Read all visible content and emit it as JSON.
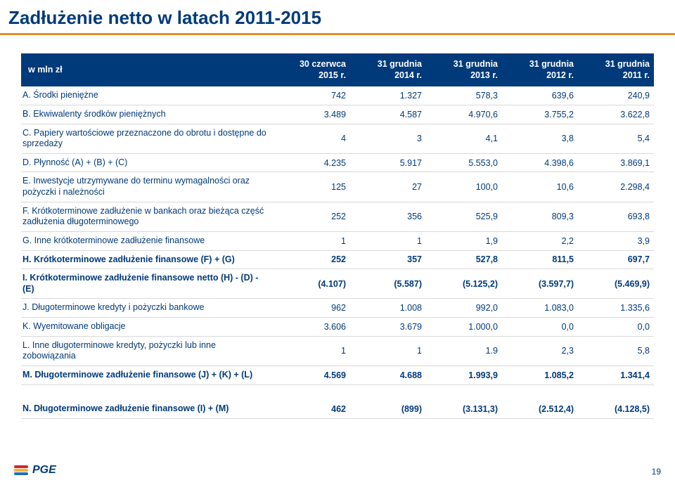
{
  "title": "Zadłużenie netto w latach 2011-2015",
  "columns": {
    "label": "w mln zł",
    "c1a": "30 czerwca",
    "c1b": "2015 r.",
    "c2a": "31 grudnia",
    "c2b": "2014 r.",
    "c3a": "31 grudnia",
    "c3b": "2013 r.",
    "c4a": "31 grudnia",
    "c4b": "2012 r.",
    "c5a": "31 grudnia",
    "c5b": "2011 r."
  },
  "rows": [
    {
      "bold": false,
      "label": "A. Środki pieniężne",
      "v": [
        "742",
        "1.327",
        "578,3",
        "639,6",
        "240,9"
      ]
    },
    {
      "bold": false,
      "label": "B. Ekwiwalenty środków pieniężnych",
      "v": [
        "3.489",
        "4.587",
        "4.970,6",
        "3.755,2",
        "3.622,8"
      ]
    },
    {
      "bold": false,
      "label": "C. Papiery wartościowe przeznaczone do obrotu i dostępne do sprzedaży",
      "v": [
        "4",
        "3",
        "4,1",
        "3,8",
        "5,4"
      ]
    },
    {
      "bold": false,
      "label": "D. Płynność (A) + (B) + (C)",
      "v": [
        "4.235",
        "5.917",
        "5.553,0",
        "4.398,6",
        "3.869,1"
      ]
    },
    {
      "bold": false,
      "label": "E. Inwestycje utrzymywane do terminu wymagalności oraz pożyczki i należności",
      "v": [
        "125",
        "27",
        "100,0",
        "10,6",
        "2.298,4"
      ]
    },
    {
      "bold": false,
      "label": "F. Krótkoterminowe zadłużenie w bankach oraz bieżąca część zadłużenia długoterminowego",
      "v": [
        "252",
        "356",
        "525,9",
        "809,3",
        "693,8"
      ]
    },
    {
      "bold": false,
      "label": "G. Inne krótkoterminowe zadłużenie finansowe",
      "v": [
        "1",
        "1",
        "1,9",
        "2,2",
        "3,9"
      ]
    },
    {
      "bold": true,
      "label": "H. Krótkoterminowe zadłużenie finansowe (F) + (G)",
      "v": [
        "252",
        "357",
        "527,8",
        "811,5",
        "697,7"
      ]
    },
    {
      "bold": true,
      "label": "I. Krótkoterminowe zadłużenie finansowe netto (H) - (D) - (E)",
      "v": [
        "(4.107)",
        "(5.587)",
        "(5.125,2)",
        "(3.597,7)",
        "(5.469,9)"
      ]
    },
    {
      "bold": false,
      "label": "J. Długoterminowe kredyty i pożyczki bankowe",
      "v": [
        "962",
        "1.008",
        "992,0",
        "1.083,0",
        "1.335,6"
      ]
    },
    {
      "bold": false,
      "label": "K. Wyemitowane obligacje",
      "v": [
        "3.606",
        "3.679",
        "1.000,0",
        "0,0",
        "0,0"
      ]
    },
    {
      "bold": false,
      "label": "L. Inne długoterminowe kredyty, pożyczki lub inne zobowiązania",
      "v": [
        "1",
        "1",
        "1.9",
        "2,3",
        "5,8"
      ]
    },
    {
      "bold": true,
      "label": "M. Długoterminowe zadłużenie finansowe (J) + (K) + (L)",
      "v": [
        "4.569",
        "4.688",
        "1.993,9",
        "1.085,2",
        "1.341,4"
      ]
    }
  ],
  "summary": {
    "bold": true,
    "label": "N. Długoterminowe zadłużenie finansowe (I) + (M)",
    "v": [
      "462",
      "(899)",
      "(3.131,3)",
      "(2.512,4)",
      "(4.128,5)"
    ]
  },
  "logo_text": "PGE",
  "page_number": "19"
}
